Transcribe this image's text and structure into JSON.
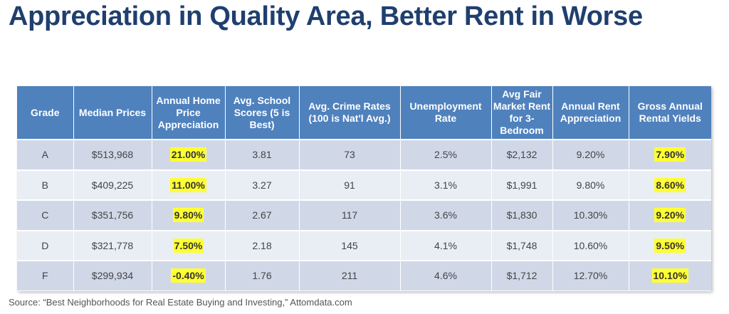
{
  "title": "Appreciation in Quality Area, Better Rent in Worse",
  "headers": [
    "Grade",
    "Median Prices",
    "Annual Home Price Appreciation",
    "Avg. School Scores (5 is Best)",
    "Avg. Crime Rates (100 is Nat'l Avg.)",
    "Unemployment Rate",
    "Avg Fair Market Rent for 3-Bedroom",
    "Annual Rent Appreciation",
    "Gross Annual Rental Yields"
  ],
  "rows": [
    {
      "grade": "A",
      "median": "$513,968",
      "home_appr": "21.00%",
      "school": "3.81",
      "crime": "73",
      "unemp": "2.5%",
      "rent": "$2,132",
      "rent_appr": "9.20%",
      "yield": "7.90%"
    },
    {
      "grade": "B",
      "median": "$409,225",
      "home_appr": "11.00%",
      "school": "3.27",
      "crime": "91",
      "unemp": "3.1%",
      "rent": "$1,991",
      "rent_appr": "9.80%",
      "yield": "8.60%"
    },
    {
      "grade": "C",
      "median": "$351,756",
      "home_appr": "9.80%",
      "school": "2.67",
      "crime": "117",
      "unemp": "3.6%",
      "rent": "$1,830",
      "rent_appr": "10.30%",
      "yield": "9.20%"
    },
    {
      "grade": "D",
      "median": "$321,778",
      "home_appr": "7.50%",
      "school": "2.18",
      "crime": "145",
      "unemp": "4.1%",
      "rent": "$1,748",
      "rent_appr": "10.60%",
      "yield": "9.50%"
    },
    {
      "grade": "F",
      "median": "$299,934",
      "home_appr": "-0.40%",
      "school": "1.76",
      "crime": "211",
      "unemp": "4.6%",
      "rent": "$1,712",
      "rent_appr": "12.70%",
      "yield": "10.10%"
    }
  ],
  "source": "Source: “Best Neighborhoods  for Real Estate Buying and Investing,” Attomdata.com",
  "colors": {
    "title": "#1f3f6e",
    "header_bg": "#4f81bd",
    "row_odd": "#d0d8e8",
    "row_even": "#e9edf4",
    "highlight": "#ffff33"
  }
}
